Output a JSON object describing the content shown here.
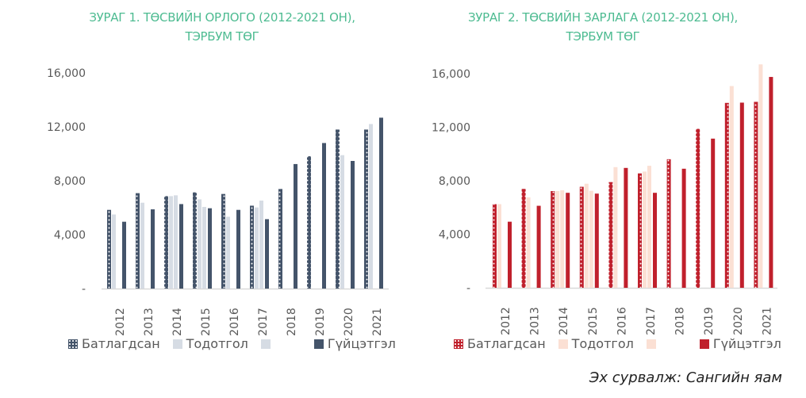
{
  "chart_data": [
    {
      "type": "bar",
      "title": [
        "ЗУРАГ 1. ТӨСВИЙН ОРЛОГО (2012-2021 ОН),",
        "ТЭРБУМ ТӨГ"
      ],
      "xlabel": "",
      "ylabel": "",
      "ylim": [
        0,
        16000
      ],
      "yticks": [
        "-",
        "4,000",
        "8,000",
        "12,000",
        "16,000"
      ],
      "categories": [
        "2012",
        "2013",
        "2014",
        "2015",
        "2016",
        "2017",
        "2018",
        "2019",
        "2020",
        "2021"
      ],
      "legend_position": "bottom",
      "series": [
        {
          "name": "Батлагдсан",
          "color": "#44546a",
          "pattern": "dotted",
          "values": [
            5840,
            7080,
            6860,
            7140,
            7020,
            6150,
            7390,
            9820,
            11800,
            11800
          ]
        },
        {
          "name": "Тодотгол",
          "color": "#d6dce4",
          "values": [
            5500,
            6370,
            6860,
            6620,
            5330,
            6020,
            null,
            null,
            9900,
            12210
          ]
        },
        {
          "name": "",
          "color": "#d6dce4",
          "values": [
            null,
            null,
            6920,
            6060,
            null,
            6530,
            null,
            null,
            null,
            null
          ]
        },
        {
          "name": "Гүйцэтгэл",
          "color": "#44546a",
          "values": [
            4960,
            5880,
            6270,
            5960,
            5840,
            5150,
            9240,
            10800,
            9470,
            12680
          ]
        }
      ]
    },
    {
      "type": "bar",
      "title": [
        "ЗУРАГ 2. ТӨСВИЙН ЗАРЛАГА (2012-2021 ОН),",
        "ТЭРБУМ ТӨГ"
      ],
      "xlabel": "",
      "ylabel": "",
      "ylim": [
        0,
        16000
      ],
      "yticks": [
        "-",
        "4,000",
        "8,000",
        "12,000",
        "16,000"
      ],
      "categories": [
        "2012",
        "2013",
        "2014",
        "2015",
        "2016",
        "2017",
        "2018",
        "2019",
        "2020",
        "2021"
      ],
      "legend_position": "bottom",
      "series": [
        {
          "name": "Батлагдсан",
          "color": "#c0202c",
          "pattern": "dotted",
          "values": [
            6250,
            7390,
            7230,
            7550,
            7900,
            8550,
            9610,
            11880,
            13820,
            13900
          ]
        },
        {
          "name": "Тодотгол",
          "color": "#fbe0d4",
          "values": [
            6250,
            6760,
            7230,
            7780,
            9020,
            8690,
            null,
            null,
            15080,
            16700
          ]
        },
        {
          "name": "",
          "color": "#fbe0d4",
          "values": [
            null,
            null,
            7290,
            7250,
            null,
            9120,
            null,
            null,
            null,
            null
          ]
        },
        {
          "name": "Гүйцэтгэл",
          "color": "#c0202c",
          "values": [
            4940,
            6130,
            7100,
            7040,
            8960,
            7100,
            8900,
            11150,
            13840,
            15760
          ]
        }
      ]
    }
  ],
  "source": "Эх сурвалж: Сангийн яам"
}
